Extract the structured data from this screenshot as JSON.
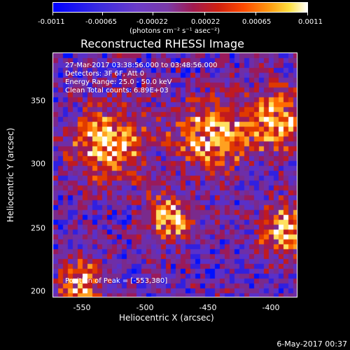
{
  "colorbar": {
    "labels": [
      "-0.0011",
      "-0.00065",
      "-0.00022",
      "0.00022",
      "0.00065",
      "0.0011"
    ],
    "units": "(photons cm⁻² s⁻¹ asec⁻²)"
  },
  "title": "Reconstructed RHESSI Image",
  "info": {
    "time": "27-Mar-2017 03:38:56.000 to 03:48:56.000",
    "detectors": "Detectors: 3F 6F, Att 0",
    "energy": "Energy Range: 25.0 - 50.0 keV",
    "clean": "Clean     Total counts: 6.89E+03",
    "peak": "Position of Peak = [-553,380]"
  },
  "x_axis": {
    "label": "Heliocentric X (arcsec)",
    "ticks": [
      "-550",
      "-500",
      "-450",
      "-400"
    ]
  },
  "y_axis": {
    "label": "Heliocentric Y (arcsec)",
    "ticks": [
      "350",
      "300",
      "250",
      "200"
    ]
  },
  "timestamp": "6-May-2017 00:37"
}
